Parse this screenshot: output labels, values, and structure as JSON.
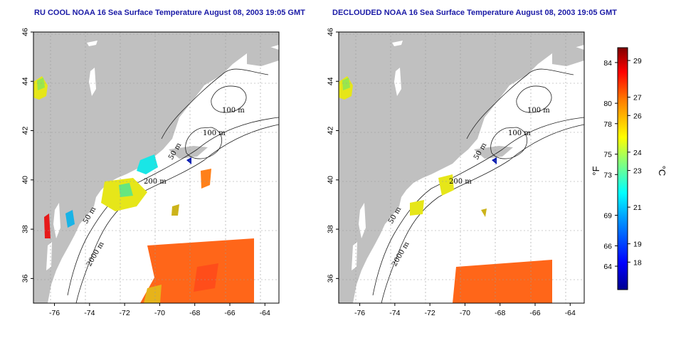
{
  "chart_data": [
    {
      "type": "heatmap",
      "title": "RU COOL NOAA 16 Sea Surface Temperature August 08, 2003 19:05 GMT",
      "x_ticks": [
        -76,
        -74,
        -72,
        -70,
        -68,
        -66,
        -64
      ],
      "y_ticks": [
        46,
        44,
        42,
        40,
        38,
        36
      ],
      "xlim": [
        -77.2,
        -63.2
      ],
      "ylim": [
        35,
        46
      ],
      "grid": true,
      "contour_labels": [
        "100 m",
        "100 m",
        "50 m",
        "200 m",
        "50 m",
        "2000 m"
      ]
    },
    {
      "type": "heatmap",
      "title": "DECLOUDED NOAA 16 Sea Surface Temperature August 08, 2003 19:05 GMT",
      "x_ticks": [
        -76,
        -74,
        -72,
        -70,
        -68,
        -66,
        -64
      ],
      "y_ticks": [
        46,
        44,
        42,
        40,
        38,
        36
      ],
      "xlim": [
        -77.2,
        -63.2
      ],
      "ylim": [
        35,
        46
      ],
      "grid": true,
      "contour_labels": [
        "100 m",
        "100 m",
        "50 m",
        "200 m",
        "50 m",
        "2000 m"
      ]
    }
  ],
  "colorbar": {
    "fahrenheit_ticks": [
      84,
      80,
      78,
      75,
      73,
      69,
      66,
      64
    ],
    "celsius_ticks": [
      29,
      27,
      26,
      24,
      23,
      21,
      19,
      18
    ],
    "fahrenheit_unit": "°F",
    "celsius_unit": "°C",
    "range_c": [
      16.5,
      29.7
    ]
  },
  "colors": {
    "land": "#c0c0c0",
    "title": "#1a1aa6",
    "colormap": [
      "#00008f",
      "#0000ff",
      "#00a0ff",
      "#00ffff",
      "#80ff80",
      "#ffff00",
      "#ff8000",
      "#ff0000",
      "#800000"
    ]
  }
}
